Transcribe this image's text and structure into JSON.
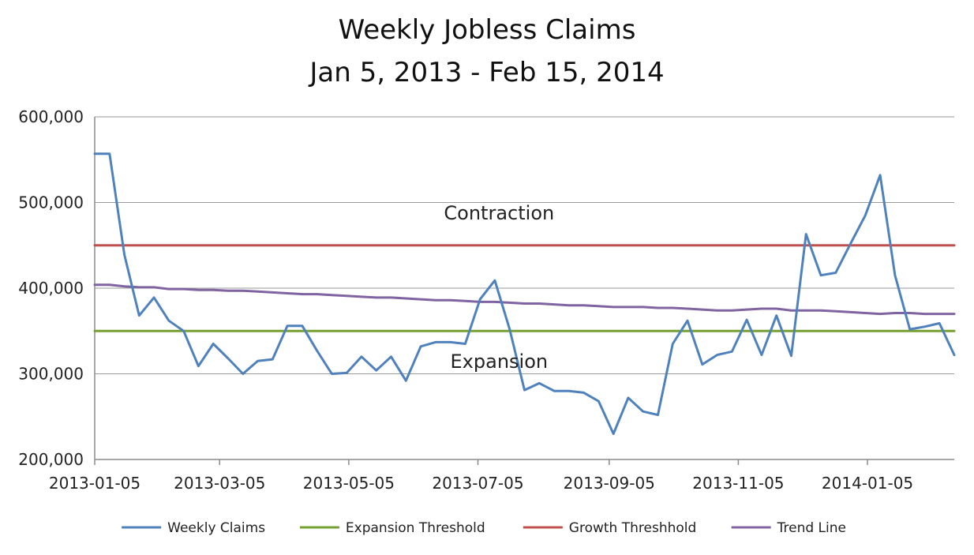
{
  "chart_data": {
    "type": "line",
    "title": "Weekly Jobless Claims",
    "subtitle": "Jan 5, 2013 - Feb 15, 2014",
    "ylim": [
      200000,
      600000
    ],
    "y_ticks": [
      200000,
      300000,
      400000,
      500000,
      600000
    ],
    "y_tick_labels": [
      "200,000",
      "300,000",
      "400,000",
      "500,000",
      "600,000"
    ],
    "x_tick_labels": [
      "2013-01-05",
      "2013-03-05",
      "2013-05-05",
      "2013-07-05",
      "2013-09-05",
      "2013-11-05",
      "2014-01-05"
    ],
    "x_tick_dates": [
      "2013-01-05",
      "2013-03-05",
      "2013-05-05",
      "2013-07-05",
      "2013-09-05",
      "2013-11-05",
      "2014-01-05"
    ],
    "xlim": [
      "2013-01-05",
      "2014-02-15"
    ],
    "grid": true,
    "legend_position": "bottom",
    "annotations": [
      {
        "text": "Contraction",
        "date": "2013-07-15",
        "value": 480000
      },
      {
        "text": "Expansion",
        "date": "2013-07-15",
        "value": 307000
      }
    ],
    "series": [
      {
        "name": "Weekly Claims",
        "color": "#4f81bd",
        "dates": [
          "2013-01-05",
          "2013-01-12",
          "2013-01-19",
          "2013-01-26",
          "2013-02-02",
          "2013-02-09",
          "2013-02-16",
          "2013-02-23",
          "2013-03-02",
          "2013-03-09",
          "2013-03-16",
          "2013-03-23",
          "2013-03-30",
          "2013-04-06",
          "2013-04-13",
          "2013-04-20",
          "2013-04-27",
          "2013-05-04",
          "2013-05-11",
          "2013-05-18",
          "2013-05-25",
          "2013-06-01",
          "2013-06-08",
          "2013-06-15",
          "2013-06-22",
          "2013-06-29",
          "2013-07-06",
          "2013-07-13",
          "2013-07-20",
          "2013-07-27",
          "2013-08-03",
          "2013-08-10",
          "2013-08-17",
          "2013-08-24",
          "2013-08-31",
          "2013-09-07",
          "2013-09-14",
          "2013-09-21",
          "2013-09-28",
          "2013-10-05",
          "2013-10-12",
          "2013-10-19",
          "2013-10-26",
          "2013-11-02",
          "2013-11-09",
          "2013-11-16",
          "2013-11-23",
          "2013-11-30",
          "2013-12-07",
          "2013-12-14",
          "2013-12-21",
          "2013-12-28",
          "2014-01-04",
          "2014-01-11",
          "2014-01-18",
          "2014-01-25",
          "2014-02-01",
          "2014-02-08",
          "2014-02-15"
        ],
        "values": [
          557000,
          557000,
          439000,
          368000,
          389000,
          362000,
          350000,
          309000,
          335000,
          318000,
          300000,
          315000,
          317000,
          356000,
          356000,
          327000,
          300000,
          301000,
          320000,
          304000,
          320000,
          292000,
          332000,
          337000,
          337000,
          335000,
          387000,
          409000,
          352000,
          281000,
          289000,
          280000,
          280000,
          278000,
          268000,
          230000,
          272000,
          256000,
          252000,
          335000,
          362000,
          311000,
          322000,
          326000,
          363000,
          322000,
          368000,
          321000,
          463000,
          415000,
          418000,
          452000,
          485000,
          532000,
          415000,
          352000,
          355000,
          359000,
          322000
        ]
      },
      {
        "name": "Expansion Threshold",
        "color": "#77a033",
        "dates": [
          "2013-01-05",
          "2014-02-15"
        ],
        "values": [
          350000,
          350000
        ]
      },
      {
        "name": "Growth Threshhold",
        "color": "#c0504d",
        "dates": [
          "2013-01-05",
          "2014-02-15"
        ],
        "values": [
          450000,
          450000
        ]
      },
      {
        "name": "Trend Line",
        "color": "#8064a2",
        "dates": [
          "2013-01-05",
          "2013-01-12",
          "2013-01-19",
          "2013-01-26",
          "2013-02-02",
          "2013-02-09",
          "2013-02-16",
          "2013-02-23",
          "2013-03-02",
          "2013-03-09",
          "2013-03-16",
          "2013-03-23",
          "2013-03-30",
          "2013-04-06",
          "2013-04-13",
          "2013-04-20",
          "2013-04-27",
          "2013-05-04",
          "2013-05-11",
          "2013-05-18",
          "2013-05-25",
          "2013-06-01",
          "2013-06-08",
          "2013-06-15",
          "2013-06-22",
          "2013-06-29",
          "2013-07-06",
          "2013-07-13",
          "2013-07-20",
          "2013-07-27",
          "2013-08-03",
          "2013-08-10",
          "2013-08-17",
          "2013-08-24",
          "2013-08-31",
          "2013-09-07",
          "2013-09-14",
          "2013-09-21",
          "2013-09-28",
          "2013-10-05",
          "2013-10-12",
          "2013-10-19",
          "2013-10-26",
          "2013-11-02",
          "2013-11-09",
          "2013-11-16",
          "2013-11-23",
          "2013-11-30",
          "2013-12-07",
          "2013-12-14",
          "2013-12-21",
          "2013-12-28",
          "2014-01-04",
          "2014-01-11",
          "2014-01-18",
          "2014-01-25",
          "2014-02-01",
          "2014-02-08",
          "2014-02-15"
        ],
        "values": [
          404000,
          404000,
          402000,
          401000,
          401000,
          399000,
          399000,
          398000,
          398000,
          397000,
          397000,
          396000,
          395000,
          394000,
          393000,
          393000,
          392000,
          391000,
          390000,
          389000,
          389000,
          388000,
          387000,
          386000,
          386000,
          385000,
          384000,
          384000,
          383000,
          382000,
          382000,
          381000,
          380000,
          380000,
          379000,
          378000,
          378000,
          378000,
          377000,
          377000,
          376000,
          375000,
          374000,
          374000,
          375000,
          376000,
          376000,
          374000,
          374000,
          374000,
          373000,
          372000,
          371000,
          370000,
          371000,
          371000,
          370000,
          370000,
          370000
        ]
      }
    ]
  }
}
